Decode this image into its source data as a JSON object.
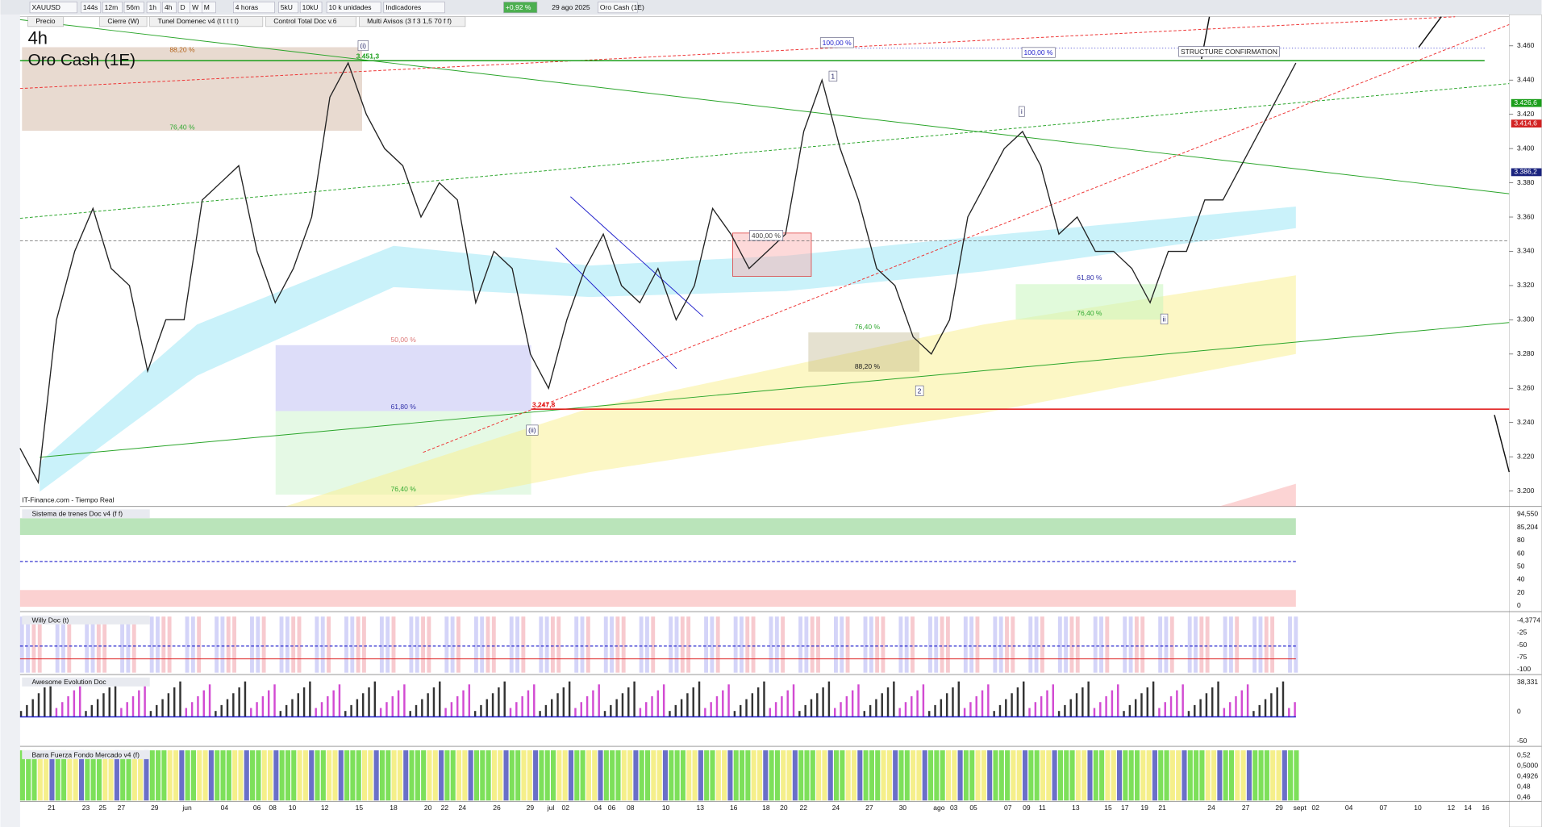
{
  "toolbar": {
    "symbol": "XAUUSD",
    "timeframes": [
      "144s",
      "12m",
      "56m",
      "1h",
      "4h",
      "D",
      "W",
      "M"
    ],
    "period": "4 horas",
    "units": [
      "5kU",
      "10kU"
    ],
    "size": "10 k unidades",
    "indicators": "Indicadores",
    "change": "+0,92 %",
    "date": "29 ago 2025",
    "name": "Oro Cash (1E)"
  },
  "legend": [
    "Precio",
    "Cierre (W)",
    "Tunel Domenec v4 (t t t t t)",
    "Control Total Doc v.6",
    "Multi Avisos (3 f 3 1,5 70 f f)"
  ],
  "chart": {
    "interval": "4h",
    "title": "Oro Cash (1E)",
    "source": "IT-Finance.com - Tiempo Real",
    "ylim": [
      3.191,
      3.477
    ],
    "yticks": [
      {
        "value": 3.46,
        "label": "3.460"
      },
      {
        "value": 3.44,
        "label": "3.440"
      },
      {
        "value": 3.42,
        "label": "3.420"
      },
      {
        "value": 3.4,
        "label": "3.400"
      },
      {
        "value": 3.38,
        "label": "3.380"
      },
      {
        "value": 3.36,
        "label": "3.360"
      },
      {
        "value": 3.34,
        "label": "3.340"
      },
      {
        "value": 3.32,
        "label": "3.320"
      },
      {
        "value": 3.3,
        "label": "3.300"
      },
      {
        "value": 3.28,
        "label": "3.280"
      },
      {
        "value": 3.26,
        "label": "3.260"
      },
      {
        "value": 3.24,
        "label": "3.240"
      },
      {
        "value": 3.22,
        "label": "3.220"
      },
      {
        "value": 3.2,
        "label": "3.200"
      }
    ],
    "price_labels": [
      {
        "value": 3.4266,
        "label": "3.426,6",
        "color": "#1a9e1a"
      },
      {
        "value": 3.4146,
        "label": "3.414,6",
        "color": "#d22222"
      },
      {
        "value": 3.3862,
        "label": "3.386,2",
        "color": "#1a237e"
      }
    ],
    "levels": [
      {
        "value": 3.4513,
        "label": "3.451,3",
        "color": "#1a9e1a"
      },
      {
        "value": 3.2478,
        "label": "3.247,8",
        "color": "#e01010"
      }
    ],
    "closes": [
      3.225,
      3.205,
      3.3,
      3.34,
      3.365,
      3.33,
      3.32,
      3.27,
      3.3,
      3.3,
      3.37,
      3.38,
      3.39,
      3.34,
      3.31,
      3.33,
      3.36,
      3.43,
      3.45,
      3.42,
      3.4,
      3.39,
      3.36,
      3.38,
      3.37,
      3.31,
      3.34,
      3.33,
      3.28,
      3.26,
      3.3,
      3.33,
      3.35,
      3.32,
      3.31,
      3.33,
      3.3,
      3.32,
      3.365,
      3.35,
      3.33,
      3.34,
      3.35,
      3.41,
      3.44,
      3.4,
      3.37,
      3.33,
      3.32,
      3.29,
      3.28,
      3.3,
      3.36,
      3.38,
      3.4,
      3.41,
      3.39,
      3.35,
      3.36,
      3.34,
      3.34,
      3.33,
      3.31,
      3.34,
      3.34,
      3.37,
      3.37,
      3.39,
      3.41,
      3.43,
      3.45
    ],
    "annotations": [
      "88,20 %",
      "76,40 %",
      "(i)",
      "50,00 %",
      "61,80 %",
      "76,40 %",
      "(ii)",
      "400,00 %",
      "1",
      "76,40 %",
      "88,20 %",
      "2",
      "i",
      "61,80 %",
      "76,40 %",
      "ii",
      "100,00 %",
      "100,00 %",
      "STRUCTURE CONFIRMATION"
    ],
    "dates": [
      "21",
      "23",
      "25",
      "27",
      "29",
      "jun",
      "04",
      "06",
      "08",
      "10",
      "12",
      "15",
      "18",
      "20",
      "22",
      "24",
      "26",
      "29",
      "jul",
      "02",
      "04",
      "06",
      "08",
      "10",
      "13",
      "16",
      "18",
      "20",
      "22",
      "24",
      "27",
      "30",
      "ago",
      "03",
      "05",
      "07",
      "09",
      "11",
      "13",
      "15",
      "17",
      "19",
      "21",
      "24",
      "27",
      "29",
      "sept",
      "02",
      "04",
      "07",
      "10",
      "12",
      "14",
      "16"
    ]
  },
  "panels": [
    {
      "title": "Sistema de trenes Doc v4 (f f)",
      "ticks": [
        "94,550",
        "85,204",
        "80",
        "60",
        "50",
        "40",
        "20",
        "0"
      ]
    },
    {
      "title": "Willy Doc (t)",
      "ticks": [
        "-4,3774",
        "-25",
        "-50",
        "-75",
        "-100"
      ]
    },
    {
      "title": "Awesome Evolution Doc",
      "ticks": [
        "38,331",
        "0",
        "-50"
      ]
    },
    {
      "title": "Barra Fuerza Fondo Mercado v4 (f)",
      "ticks": [
        "0,52",
        "0,5000",
        "0,4926",
        "0,48",
        "0,46"
      ]
    }
  ]
}
